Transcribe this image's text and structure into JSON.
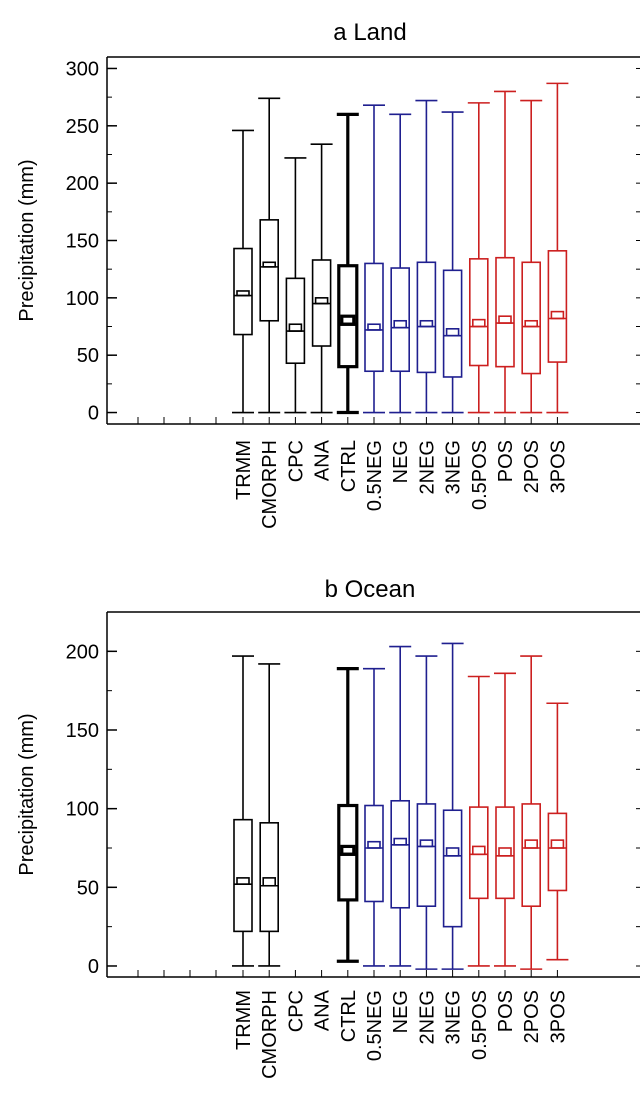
{
  "figure": {
    "panels": [
      {
        "title": "a  Land"
      },
      {
        "title": "b  Ocean"
      }
    ]
  },
  "chart_data": [
    {
      "type": "box",
      "title": "a  Land",
      "ylabel": "Precipitation (mm)",
      "xlabel": "",
      "ylim": [
        -10,
        310
      ],
      "yticks": [
        0,
        50,
        100,
        150,
        200,
        250,
        300
      ],
      "categories": [
        "TRMM",
        "CMORPH",
        "CPC",
        "ANA",
        "CTRL",
        "0.5NEG",
        "NEG",
        "2NEG",
        "3NEG",
        "0.5POS",
        "POS",
        "2POS",
        "3POS"
      ],
      "colors": [
        "#000000",
        "#000000",
        "#000000",
        "#000000",
        "#000000",
        "#1f1f8f",
        "#1f1f8f",
        "#1f1f8f",
        "#1f1f8f",
        "#cc1f1f",
        "#cc1f1f",
        "#cc1f1f",
        "#cc1f1f"
      ],
      "bold": [
        false,
        false,
        false,
        false,
        true,
        false,
        false,
        false,
        false,
        false,
        false,
        false,
        false
      ],
      "boxes": [
        {
          "whislo": 0,
          "q1": 68,
          "med": 102,
          "mean": 106,
          "q3": 143,
          "whishi": 246
        },
        {
          "whislo": 0,
          "q1": 80,
          "med": 127,
          "mean": 131,
          "q3": 168,
          "whishi": 274
        },
        {
          "whislo": 0,
          "q1": 43,
          "med": 71,
          "mean": 77,
          "q3": 117,
          "whishi": 222
        },
        {
          "whislo": 0,
          "q1": 58,
          "med": 95,
          "mean": 100,
          "q3": 133,
          "whishi": 234
        },
        {
          "whislo": 0,
          "q1": 40,
          "med": 77,
          "mean": 84,
          "q3": 128,
          "whishi": 260
        },
        {
          "whislo": 0,
          "q1": 36,
          "med": 72,
          "mean": 77,
          "q3": 130,
          "whishi": 268
        },
        {
          "whislo": 0,
          "q1": 36,
          "med": 74,
          "mean": 80,
          "q3": 126,
          "whishi": 260
        },
        {
          "whislo": 0,
          "q1": 35,
          "med": 75,
          "mean": 80,
          "q3": 131,
          "whishi": 272
        },
        {
          "whislo": 0,
          "q1": 31,
          "med": 67,
          "mean": 73,
          "q3": 124,
          "whishi": 262
        },
        {
          "whislo": 0,
          "q1": 41,
          "med": 75,
          "mean": 81,
          "q3": 134,
          "whishi": 270
        },
        {
          "whislo": 0,
          "q1": 40,
          "med": 78,
          "mean": 84,
          "q3": 135,
          "whishi": 280
        },
        {
          "whislo": 0,
          "q1": 34,
          "med": 75,
          "mean": 80,
          "q3": 131,
          "whishi": 272
        },
        {
          "whislo": 0,
          "q1": 44,
          "med": 82,
          "mean": 88,
          "q3": 141,
          "whishi": 287
        }
      ]
    },
    {
      "type": "box",
      "title": "b  Ocean",
      "ylabel": "Precipitation (mm)",
      "xlabel": "",
      "ylim": [
        -7,
        225
      ],
      "yticks": [
        0,
        50,
        100,
        150,
        200
      ],
      "categories": [
        "TRMM",
        "CMORPH",
        "CPC",
        "ANA",
        "CTRL",
        "0.5NEG",
        "NEG",
        "2NEG",
        "3NEG",
        "0.5POS",
        "POS",
        "2POS",
        "3POS"
      ],
      "colors": [
        "#000000",
        "#000000",
        "#000000",
        "#000000",
        "#000000",
        "#1f1f8f",
        "#1f1f8f",
        "#1f1f8f",
        "#1f1f8f",
        "#cc1f1f",
        "#cc1f1f",
        "#cc1f1f",
        "#cc1f1f"
      ],
      "bold": [
        false,
        false,
        false,
        false,
        true,
        false,
        false,
        false,
        false,
        false,
        false,
        false,
        false
      ],
      "boxes": [
        {
          "whislo": 0,
          "q1": 22,
          "med": 52,
          "mean": 56,
          "q3": 93,
          "whishi": 197
        },
        {
          "whislo": 0,
          "q1": 22,
          "med": 51,
          "mean": 56,
          "q3": 91,
          "whishi": 192
        },
        null,
        null,
        {
          "whislo": 3,
          "q1": 42,
          "med": 71,
          "mean": 76,
          "q3": 102,
          "whishi": 189
        },
        {
          "whislo": 0,
          "q1": 41,
          "med": 75,
          "mean": 79,
          "q3": 102,
          "whishi": 189
        },
        {
          "whislo": 0,
          "q1": 37,
          "med": 77,
          "mean": 81,
          "q3": 105,
          "whishi": 203
        },
        {
          "whislo": -2,
          "q1": 38,
          "med": 76,
          "mean": 80,
          "q3": 103,
          "whishi": 197
        },
        {
          "whislo": -2,
          "q1": 25,
          "med": 70,
          "mean": 75,
          "q3": 99,
          "whishi": 205
        },
        {
          "whislo": 0,
          "q1": 43,
          "med": 71,
          "mean": 76,
          "q3": 101,
          "whishi": 184
        },
        {
          "whislo": 0,
          "q1": 43,
          "med": 70,
          "mean": 75,
          "q3": 101,
          "whishi": 186
        },
        {
          "whislo": -2,
          "q1": 38,
          "med": 75,
          "mean": 80,
          "q3": 103,
          "whishi": 197
        },
        {
          "whislo": 4,
          "q1": 48,
          "med": 75,
          "mean": 80,
          "q3": 97,
          "whishi": 167
        }
      ]
    }
  ]
}
